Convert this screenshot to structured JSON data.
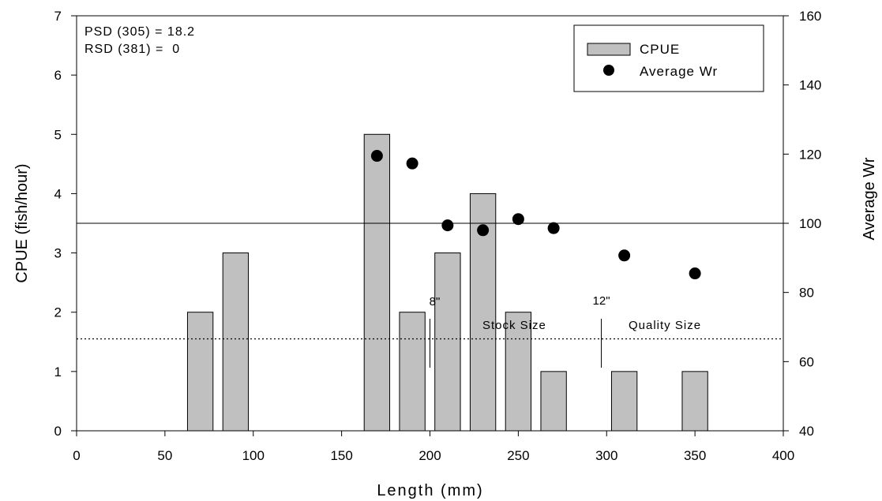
{
  "chart_data": {
    "type": "bar",
    "x_axis": {
      "label": "Length (mm)",
      "range": [
        0,
        400
      ],
      "ticks": [
        0,
        50,
        100,
        150,
        200,
        250,
        300,
        350,
        400
      ]
    },
    "y_axis_left": {
      "label": "CPUE (fish/hour)",
      "range": [
        0,
        7
      ],
      "ticks": [
        0,
        1,
        2,
        3,
        4,
        5,
        6,
        7
      ]
    },
    "y_axis_right": {
      "label": "Average Wr",
      "range": [
        40,
        160
      ],
      "ticks": [
        40,
        60,
        80,
        100,
        120,
        140,
        160
      ]
    },
    "series": [
      {
        "name": "CPUE",
        "kind": "bar",
        "axis": "left",
        "color": "#c0c0c0",
        "points": [
          {
            "x": 70,
            "y": 2
          },
          {
            "x": 90,
            "y": 3
          },
          {
            "x": 170,
            "y": 5
          },
          {
            "x": 190,
            "y": 2
          },
          {
            "x": 210,
            "y": 3
          },
          {
            "x": 230,
            "y": 4
          },
          {
            "x": 250,
            "y": 2
          },
          {
            "x": 270,
            "y": 1
          },
          {
            "x": 310,
            "y": 1
          },
          {
            "x": 350,
            "y": 1
          }
        ]
      },
      {
        "name": "Average Wr",
        "kind": "scatter",
        "axis": "right",
        "color": "#000000",
        "points": [
          {
            "x": 170,
            "y": 119.5
          },
          {
            "x": 190,
            "y": 117.3
          },
          {
            "x": 210,
            "y": 99.4
          },
          {
            "x": 230,
            "y": 98.0
          },
          {
            "x": 250,
            "y": 101.2
          },
          {
            "x": 270,
            "y": 98.6
          },
          {
            "x": 310,
            "y": 90.7
          },
          {
            "x": 350,
            "y": 85.5
          }
        ]
      }
    ],
    "reference_lines": [
      {
        "axis": "right",
        "value": 100,
        "style": "solid"
      },
      {
        "axis": "left",
        "value": 1.55,
        "style": "dotted"
      }
    ],
    "markers": [
      {
        "x": 200,
        "label": "8\"",
        "region_label": "Stock Size"
      },
      {
        "x": 297,
        "label": "12\"",
        "region_label": "Quality Size"
      }
    ],
    "annotations": [
      "PSD (305) = 18.2",
      "RSD (381) =  0"
    ],
    "legend": {
      "position": "top-right",
      "items": [
        "CPUE",
        "Average Wr"
      ]
    }
  }
}
